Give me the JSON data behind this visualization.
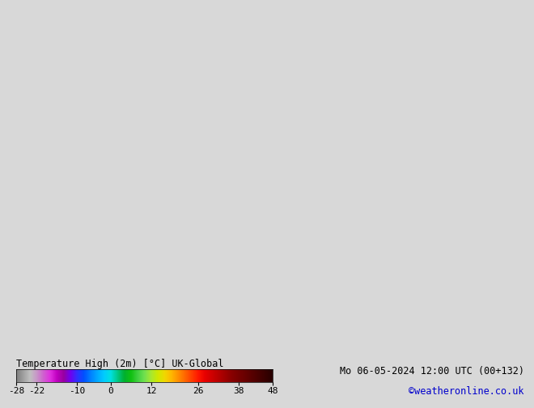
{
  "title_label": "Temperature High (2m) [°C] UK-Global",
  "date_label": "Mo 06-05-2024 12:00 UTC (00+132)",
  "credit_label": "©weatheronline.co.uk",
  "colorbar_ticks": [
    -28,
    -22,
    -10,
    0,
    12,
    26,
    38,
    48
  ],
  "colorbar_vmin": -28,
  "colorbar_vmax": 48,
  "colorbar_colors": [
    [
      -28,
      "#808080"
    ],
    [
      -26,
      "#a0a0a0"
    ],
    [
      -24,
      "#c0c0c0"
    ],
    [
      -22,
      "#c896c8"
    ],
    [
      -20,
      "#d060d0"
    ],
    [
      -18,
      "#e030e0"
    ],
    [
      -16,
      "#c000c0"
    ],
    [
      -14,
      "#9800a0"
    ],
    [
      -12,
      "#7000f0"
    ],
    [
      -10,
      "#3030ff"
    ],
    [
      -8,
      "#0050ff"
    ],
    [
      -6,
      "#0080ff"
    ],
    [
      -4,
      "#00a8ff"
    ],
    [
      -2,
      "#00ccff"
    ],
    [
      0,
      "#00e0e0"
    ],
    [
      2,
      "#00c888"
    ],
    [
      4,
      "#00b030"
    ],
    [
      6,
      "#10c010"
    ],
    [
      8,
      "#40d040"
    ],
    [
      10,
      "#70e050"
    ],
    [
      12,
      "#a8e830"
    ],
    [
      14,
      "#d0e800"
    ],
    [
      16,
      "#f0d800"
    ],
    [
      18,
      "#ffb800"
    ],
    [
      20,
      "#ff9000"
    ],
    [
      22,
      "#ff6800"
    ],
    [
      24,
      "#ff4000"
    ],
    [
      26,
      "#ff1800"
    ],
    [
      28,
      "#e80000"
    ],
    [
      30,
      "#d00000"
    ],
    [
      32,
      "#b80000"
    ],
    [
      34,
      "#a00000"
    ],
    [
      36,
      "#880000"
    ],
    [
      38,
      "#780000"
    ],
    [
      40,
      "#680000"
    ],
    [
      42,
      "#580000"
    ],
    [
      44,
      "#480000"
    ],
    [
      46,
      "#380000"
    ],
    [
      48,
      "#280000"
    ]
  ],
  "bg_color": "#d8d8d8",
  "ocean_color": "#d8d8d8",
  "land_color": "#90ee90",
  "border_color": "#404040",
  "label_fontsize": 9,
  "credit_color": "#0000cc",
  "extent": [
    0.0,
    35.0,
    54.0,
    72.0
  ],
  "central_longitude": 15.0
}
